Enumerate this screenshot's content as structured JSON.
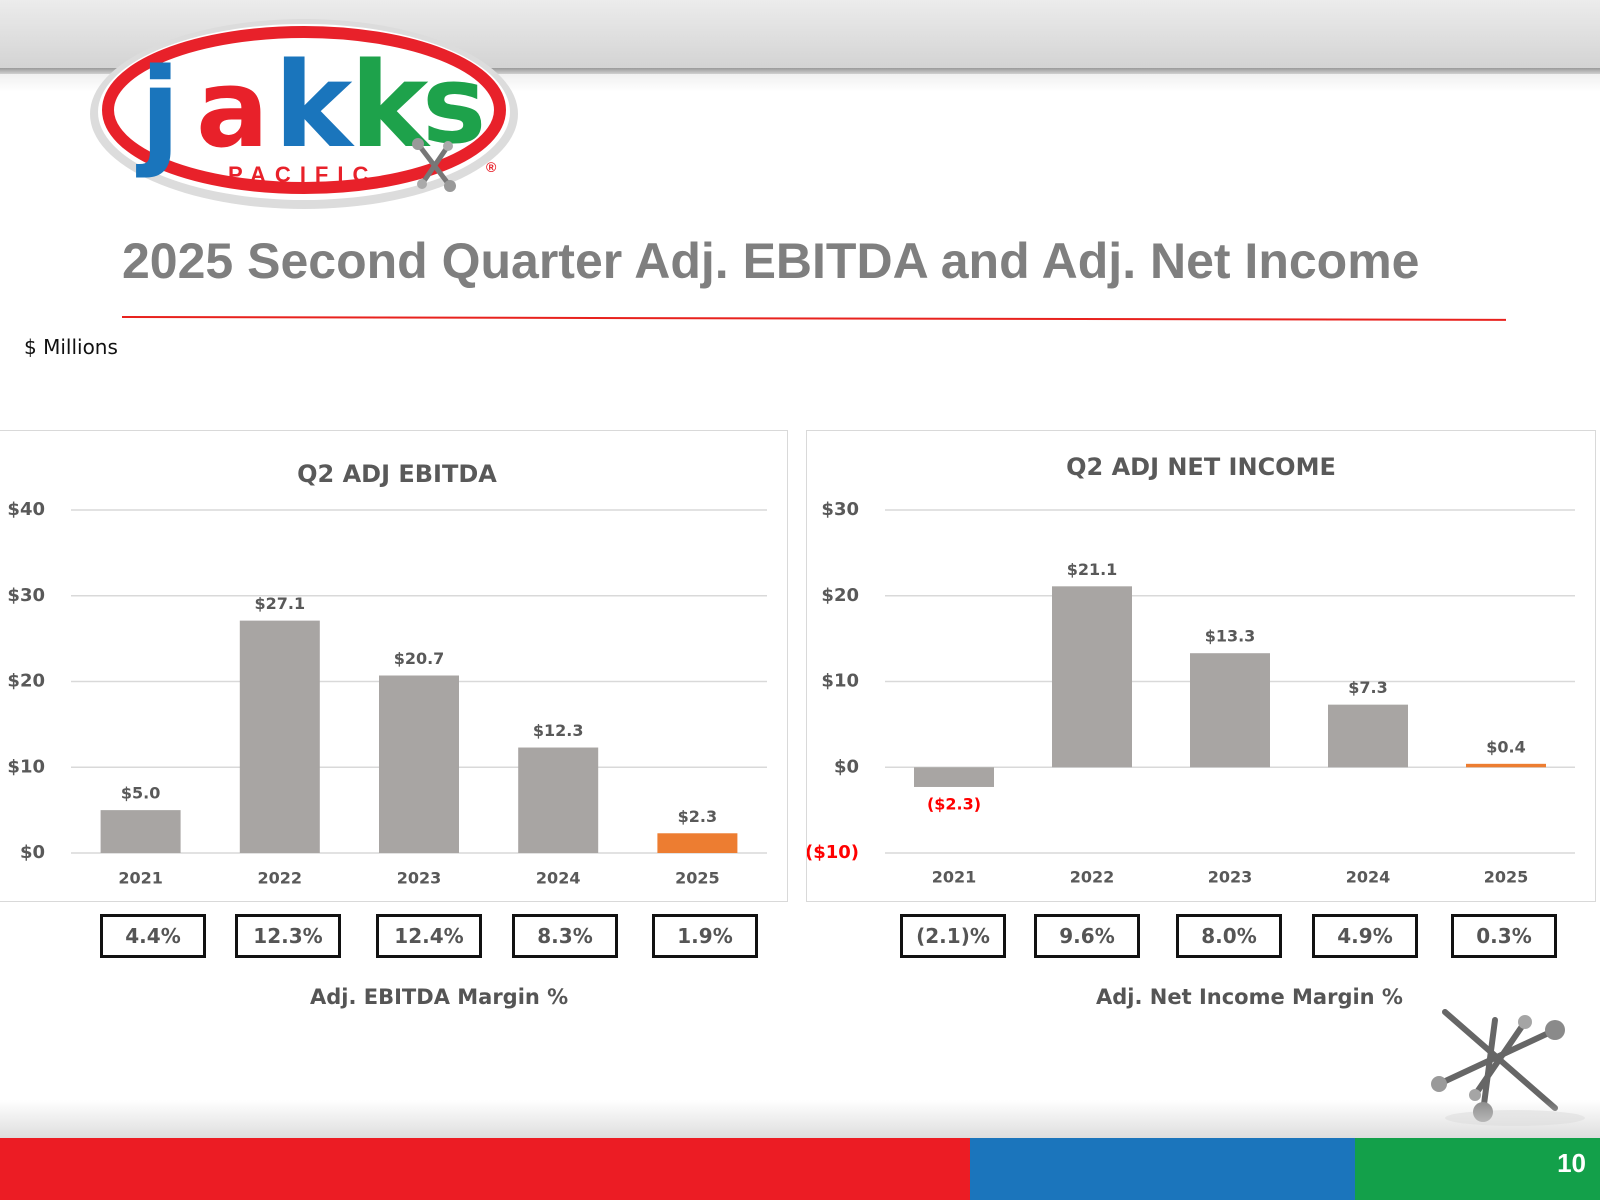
{
  "brand": {
    "name": "jakks",
    "sub": "PACIFIC",
    "reg": "®",
    "colors": {
      "red": "#e8212a",
      "blue": "#1a75bc",
      "green": "#1ea24b"
    }
  },
  "slide": {
    "title": "2025 Second Quarter Adj. EBITDA and Adj. Net Income",
    "units": "$ Millions",
    "page_number": "10"
  },
  "colors": {
    "bar_gray": "#a8a5a3",
    "bar_highlight": "#ed7d31",
    "negative_label": "#ff0000",
    "axis_label": "#595959",
    "gridline": "#d9d9d9",
    "footer_red": "#ec1c24",
    "footer_blue": "#1b75bc",
    "footer_green": "#13a04a"
  },
  "chart_data": [
    {
      "type": "bar",
      "title": "Q2 ADJ EBITDA",
      "categories": [
        "2021",
        "2022",
        "2023",
        "2024",
        "2025"
      ],
      "values": [
        5.0,
        27.1,
        20.7,
        12.3,
        2.3
      ],
      "data_labels": [
        "$5.0",
        "$27.1",
        "$20.7",
        "$12.3",
        "$2.3"
      ],
      "ylim": [
        0,
        40
      ],
      "yticks": [
        0,
        10,
        20,
        30,
        40
      ],
      "ytick_labels": [
        "$0",
        "$10",
        "$20",
        "$30",
        "$40"
      ],
      "highlight_index": 4,
      "grid": true,
      "margins": {
        "title": "Adj. EBITDA Margin %",
        "values": [
          "4.4%",
          "12.3%",
          "12.4%",
          "8.3%",
          "1.9%"
        ]
      }
    },
    {
      "type": "bar",
      "title": "Q2 ADJ NET INCOME",
      "categories": [
        "2021",
        "2022",
        "2023",
        "2024",
        "2025"
      ],
      "values": [
        -2.3,
        21.1,
        13.3,
        7.3,
        0.4
      ],
      "data_labels": [
        "($2.3)",
        "$21.1",
        "$13.3",
        "$7.3",
        "$0.4"
      ],
      "ylim": [
        -10,
        30
      ],
      "yticks": [
        -10,
        0,
        10,
        20,
        30
      ],
      "ytick_labels": [
        "($10)",
        "$0",
        "$10",
        "$20",
        "$30"
      ],
      "highlight_index": 4,
      "grid": true,
      "margins": {
        "title": "Adj. Net Income Margin %",
        "values": [
          "(2.1)%",
          "9.6%",
          "8.0%",
          "4.9%",
          "0.3%"
        ]
      }
    }
  ]
}
